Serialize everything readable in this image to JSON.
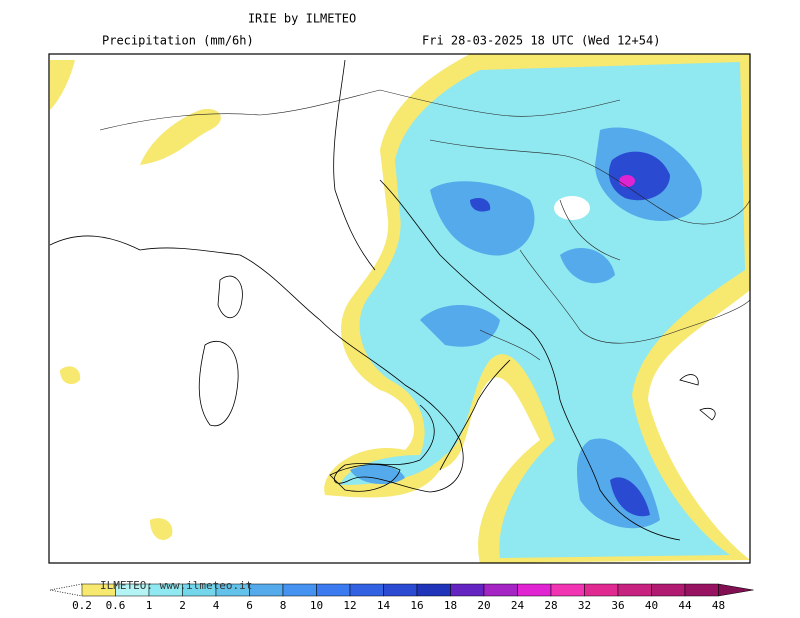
{
  "header": {
    "title": "IRIE by ILMETEO",
    "field": "Precipitation (mm/6h)",
    "valid_time": "Fri 28-03-2025 18 UTC (Wed 12+54)"
  },
  "watermark": "ILMETEO: www.ilmeteo.it",
  "legend": {
    "levels": [
      0.2,
      0.6,
      1,
      2,
      4,
      6,
      8,
      10,
      12,
      14,
      16,
      18,
      20,
      24,
      28,
      32,
      36,
      40,
      44,
      48
    ],
    "colors": [
      "#f7e870",
      "#b4f4f4",
      "#90e8f0",
      "#74d6ea",
      "#62c2ea",
      "#54aaea",
      "#4692f0",
      "#3c7af0",
      "#3262e2",
      "#2a4ad2",
      "#2034ba",
      "#6424c2",
      "#a424c4",
      "#e024d2",
      "#f034b2",
      "#e02a92",
      "#c82280",
      "#b01a70",
      "#981262",
      "#801052"
    ]
  }
}
